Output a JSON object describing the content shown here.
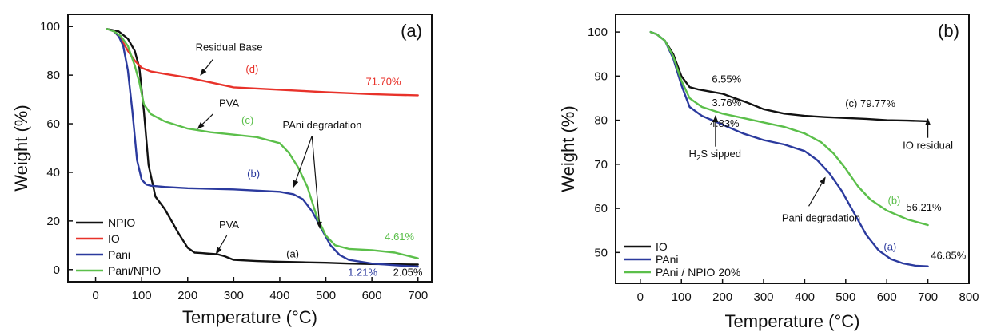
{
  "chart_data": [
    {
      "type": "line",
      "panel_label": "(a)",
      "xlabel": "Temperature (°C)",
      "ylabel": "Weight (%)",
      "xlim": [
        -60,
        730
      ],
      "ylim": [
        -5,
        105
      ],
      "xticks": [
        0,
        100,
        200,
        300,
        400,
        500,
        600,
        700
      ],
      "yticks": [
        0,
        20,
        40,
        60,
        80,
        100
      ],
      "legend_position": "bottom-left",
      "series": [
        {
          "name": "NPIO",
          "color": "#111111",
          "x": [
            25,
            50,
            70,
            85,
            95,
            105,
            115,
            130,
            150,
            180,
            200,
            215,
            230,
            250,
            265,
            280,
            300,
            350,
            400,
            450,
            500,
            550,
            600,
            650,
            700
          ],
          "y": [
            99,
            98,
            95,
            90,
            83,
            65,
            43,
            30,
            25,
            15,
            9,
            7,
            6.8,
            6.5,
            6.3,
            5.5,
            4,
            3.5,
            3.2,
            3,
            2.8,
            2.5,
            2.3,
            2.2,
            2.05
          ]
        },
        {
          "name": "IO",
          "color": "#e8322a",
          "x": [
            25,
            40,
            55,
            70,
            85,
            100,
            120,
            150,
            200,
            250,
            300,
            350,
            400,
            450,
            500,
            550,
            600,
            650,
            700
          ],
          "y": [
            99,
            98,
            95,
            90,
            86,
            83,
            81.5,
            80.5,
            79,
            77,
            75,
            74.5,
            74,
            73.5,
            73,
            72.6,
            72.2,
            71.9,
            71.7
          ]
        },
        {
          "name": "Pani",
          "color": "#2b3a9e",
          "x": [
            25,
            40,
            50,
            60,
            70,
            80,
            90,
            100,
            110,
            120,
            150,
            200,
            300,
            400,
            430,
            450,
            470,
            490,
            510,
            530,
            550,
            600,
            650,
            700
          ],
          "y": [
            99,
            98,
            96,
            92,
            82,
            65,
            45,
            37,
            35,
            34.5,
            34,
            33.5,
            33,
            32,
            31,
            29,
            24,
            17,
            10,
            6,
            4,
            2.5,
            1.8,
            1.21
          ]
        },
        {
          "name": "Pani/NPIO",
          "color": "#5bbf4a",
          "x": [
            25,
            40,
            55,
            70,
            85,
            95,
            105,
            120,
            150,
            200,
            250,
            300,
            350,
            400,
            420,
            440,
            460,
            470,
            480,
            500,
            520,
            550,
            600,
            650,
            700
          ],
          "y": [
            99,
            98,
            96,
            92,
            84,
            77,
            68,
            64,
            61,
            58,
            56.5,
            55.5,
            54.5,
            52,
            48,
            42,
            34,
            28,
            22,
            14,
            10,
            8.5,
            8,
            7,
            4.61
          ]
        }
      ],
      "annotations": [
        {
          "text": "Residual Base",
          "x": 290,
          "y": 90,
          "color": "#111111"
        },
        {
          "text": "(d)",
          "x": 340,
          "y": 81,
          "color": "#e8322a"
        },
        {
          "text": "71.70%",
          "x": 625,
          "y": 76,
          "color": "#e8322a"
        },
        {
          "text": "PVA",
          "x": 290,
          "y": 67,
          "color": "#111111"
        },
        {
          "text": "(c)",
          "x": 330,
          "y": 60,
          "color": "#5bbf4a"
        },
        {
          "text": "PAni degradation",
          "x": 492,
          "y": 58,
          "color": "#111111"
        },
        {
          "text": "(b)",
          "x": 343,
          "y": 38,
          "color": "#2b3a9e"
        },
        {
          "text": "PVA",
          "x": 290,
          "y": 17,
          "color": "#111111"
        },
        {
          "text": "(a)",
          "x": 428,
          "y": 5,
          "color": "#111111"
        },
        {
          "text": "4.61%",
          "x": 660,
          "y": 12,
          "color": "#5bbf4a"
        },
        {
          "text": "1.21%",
          "x": 580,
          "y": -2.5,
          "color": "#2b3a9e"
        },
        {
          "text": "2.05%",
          "x": 678,
          "y": -2.5,
          "color": "#111111"
        }
      ],
      "arrows": [
        {
          "from": [
            255,
            86.5
          ],
          "to": [
            228,
            80
          ]
        },
        {
          "from": [
            255,
            64
          ],
          "to": [
            222,
            58
          ]
        },
        {
          "from": [
            470,
            55
          ],
          "to": [
            430,
            34
          ]
        },
        {
          "from": [
            470,
            55
          ],
          "to": [
            487,
            17
          ]
        },
        {
          "from": [
            285,
            14
          ],
          "to": [
            262,
            6.5
          ]
        }
      ]
    },
    {
      "type": "line",
      "panel_label": "(b)",
      "xlabel": "Temperature (°C)",
      "ylabel": "Weight (%)",
      "xlim": [
        -60,
        800
      ],
      "ylim": [
        43,
        104
      ],
      "xticks": [
        0,
        100,
        200,
        300,
        400,
        500,
        600,
        700,
        800
      ],
      "yticks": [
        50,
        60,
        70,
        80,
        90,
        100
      ],
      "legend_position": "bottom-left",
      "series": [
        {
          "name": "IO",
          "color": "#111111",
          "x": [
            25,
            40,
            60,
            80,
            100,
            120,
            140,
            170,
            200,
            230,
            260,
            300,
            350,
            400,
            450,
            500,
            550,
            600,
            650,
            700
          ],
          "y": [
            100,
            99.5,
            98,
            95,
            90,
            87.5,
            87,
            86.5,
            86,
            85,
            84,
            82.5,
            81.5,
            81,
            80.7,
            80.5,
            80.3,
            80,
            79.9,
            79.77
          ]
        },
        {
          "name": "PAni",
          "color": "#2b3a9e",
          "x": [
            25,
            40,
            60,
            80,
            100,
            120,
            150,
            200,
            250,
            300,
            350,
            400,
            430,
            460,
            490,
            520,
            550,
            580,
            610,
            640,
            670,
            700
          ],
          "y": [
            100,
            99.5,
            98,
            94,
            88,
            83,
            81,
            79,
            77,
            75.5,
            74.5,
            73,
            71,
            68,
            64,
            59,
            54,
            50.5,
            48.5,
            47.5,
            47,
            46.85
          ]
        },
        {
          "name": "PAni / NPIO 20%",
          "color": "#5bbf4a",
          "x": [
            25,
            40,
            60,
            80,
            100,
            120,
            150,
            200,
            250,
            300,
            350,
            400,
            440,
            470,
            500,
            530,
            560,
            600,
            650,
            700
          ],
          "y": [
            100,
            99.5,
            98,
            94.5,
            89,
            85,
            83,
            81.5,
            80.5,
            79.5,
            78.5,
            77,
            75,
            72.5,
            69,
            65,
            62,
            59.5,
            57.5,
            56.21
          ]
        }
      ],
      "annotations": [
        {
          "text": "6.55%",
          "x": 210,
          "y": 88.5,
          "color": "#111111"
        },
        {
          "text": "3.76%",
          "x": 210,
          "y": 83.2,
          "color": "#111111"
        },
        {
          "text": "4.83%",
          "x": 205,
          "y": 78.5,
          "color": "#111111"
        },
        {
          "text": "(c) 79.77%",
          "x": 560,
          "y": 83,
          "color": "#111111"
        },
        {
          "text": "IO residual",
          "x": 700,
          "y": 73.5,
          "color": "#111111"
        },
        {
          "text": "Pani degradation",
          "x": 440,
          "y": 57,
          "color": "#111111"
        },
        {
          "text": "(b)",
          "x": 618,
          "y": 61,
          "color": "#5bbf4a"
        },
        {
          "text": "56.21%",
          "x": 690,
          "y": 59.5,
          "color": "#111111"
        },
        {
          "text": "(a)",
          "x": 608,
          "y": 50.5,
          "color": "#2b3a9e"
        },
        {
          "text": "46.85%",
          "x": 750,
          "y": 48.5,
          "color": "#111111"
        }
      ],
      "arrows": [
        {
          "from": [
            183,
            74
          ],
          "to": [
            183,
            81
          ]
        },
        {
          "from": [
            700,
            76
          ],
          "to": [
            700,
            80.3
          ]
        },
        {
          "from": [
            410,
            60.5
          ],
          "to": [
            450,
            67
          ]
        }
      ],
      "chemical_label": {
        "prefix": "H",
        "subscript": "2",
        "suffix": "S sipped",
        "x": 118,
        "y": 71.6
      }
    }
  ]
}
